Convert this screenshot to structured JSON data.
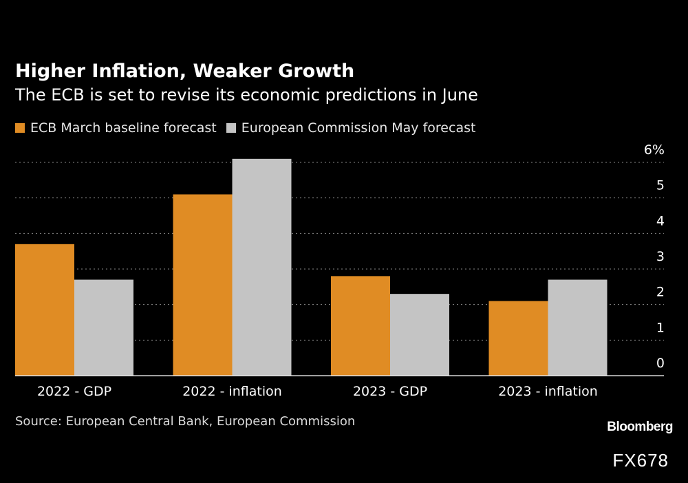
{
  "header": {
    "title": "Higher Inflation, Weaker Growth",
    "subtitle": "The ECB is set to revise its economic predictions in June"
  },
  "legend": [
    {
      "label": "ECB March baseline forecast",
      "color": "#e08c24"
    },
    {
      "label": "European Commission May forecast",
      "color": "#c4c4c4"
    }
  ],
  "footer": {
    "source": "Source: European Central Bank, European Commission",
    "brand": "Bloomberg",
    "code": "FX678"
  },
  "chart_data": {
    "type": "bar",
    "title": "Higher Inflation, Weaker Growth",
    "categories": [
      "2022 - GDP",
      "2022 - inflation",
      "2023 - GDP",
      "2023 - inflation"
    ],
    "series": [
      {
        "name": "ECB March baseline forecast",
        "color": "#e08c24",
        "values": [
          3.7,
          5.1,
          2.8,
          2.1
        ]
      },
      {
        "name": "European Commission May forecast",
        "color": "#c4c4c4",
        "values": [
          2.7,
          6.1,
          2.3,
          2.7
        ]
      }
    ],
    "ylim": [
      0,
      6
    ],
    "yticks": [
      0,
      1,
      2,
      3,
      4,
      5,
      6
    ],
    "ytick_labels": [
      "0",
      "1",
      "2",
      "3",
      "4",
      "5",
      "6%"
    ],
    "grid": true,
    "legend_position": "top-left",
    "xlabel": "",
    "ylabel": ""
  }
}
